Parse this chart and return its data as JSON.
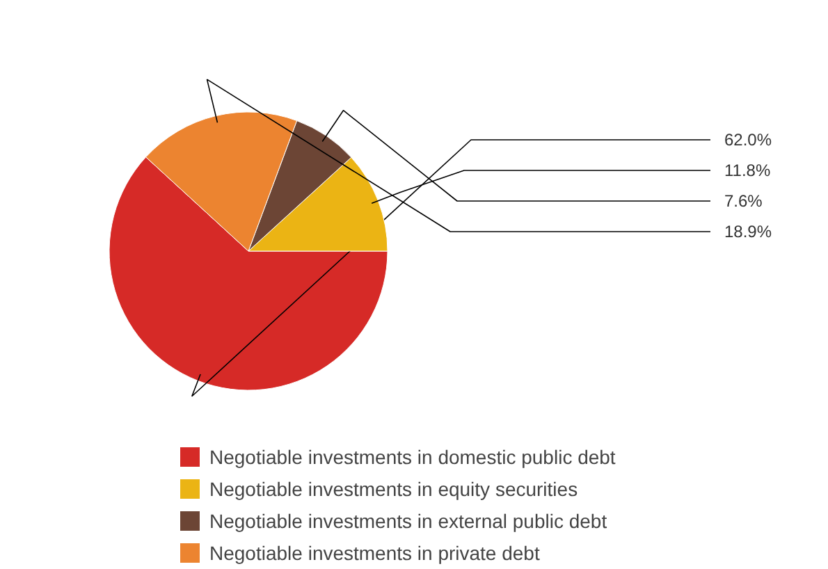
{
  "chart_data": {
    "type": "pie",
    "categories": [
      "Negotiable investments in domestic public debt",
      "Negotiable investments in equity securities",
      "Negotiable investments in external public debt",
      "Negotiable investments in private debt"
    ],
    "values": [
      62.0,
      11.8,
      7.6,
      18.9
    ],
    "colors": [
      "#d62a27",
      "#ebb414",
      "#6c4535",
      "#ec8430"
    ],
    "value_labels": [
      "62.0%",
      "11.8%",
      "7.6%",
      "18.9%"
    ],
    "legend": "bottom"
  }
}
